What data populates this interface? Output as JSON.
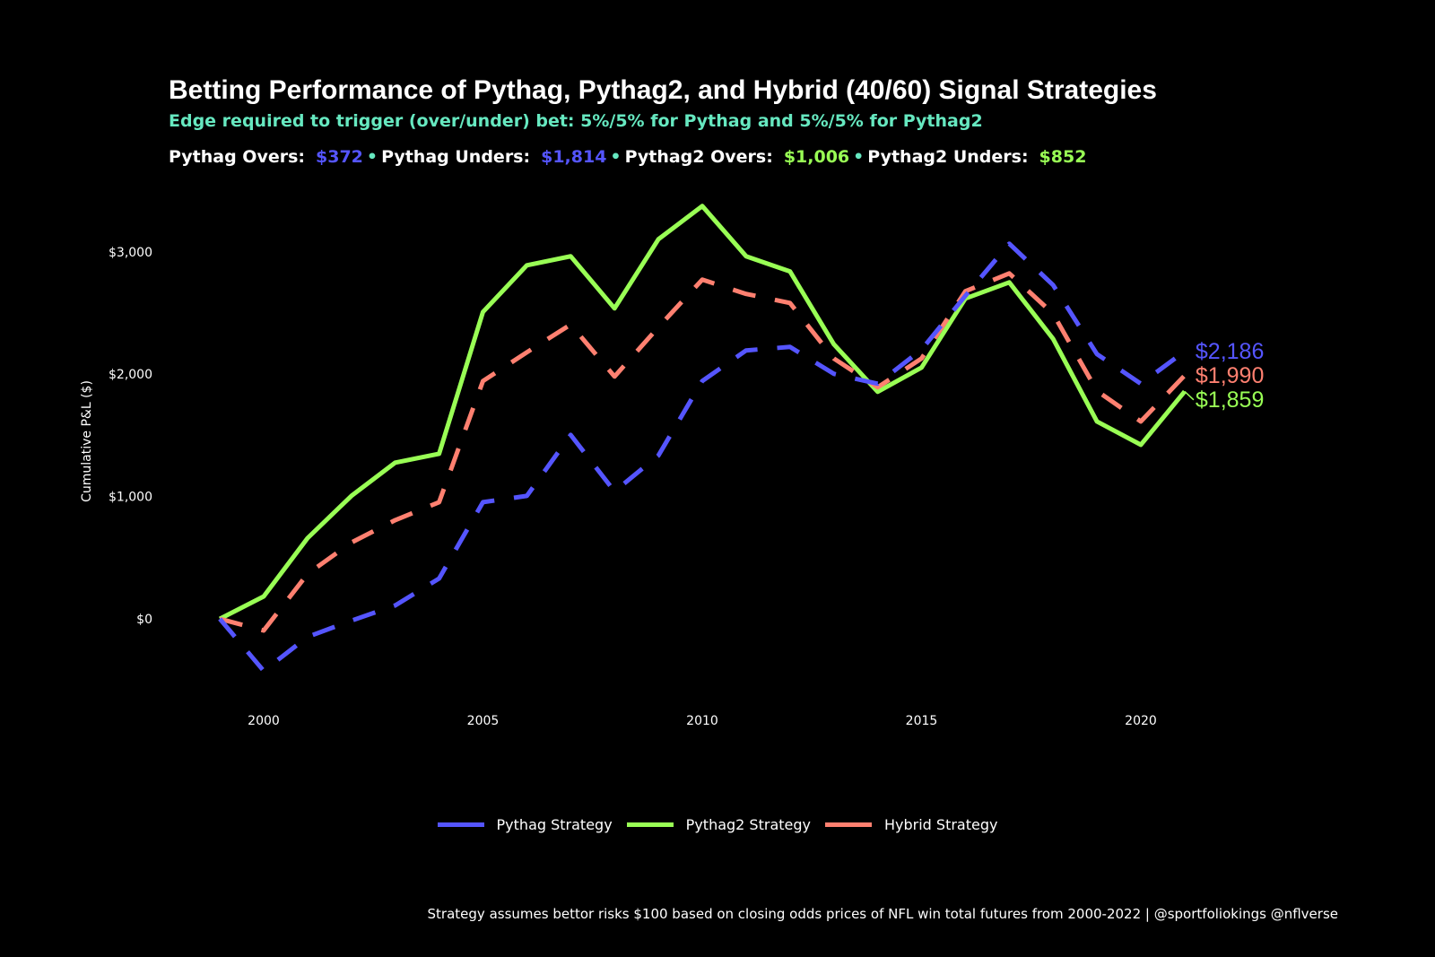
{
  "chart_data": {
    "type": "line",
    "title": "Betting Performance of Pythag, Pythag2, and Hybrid (40/60) Signal Strategies",
    "subtitle": "Edge required to trigger (over/under) bet: 5%/5% for Pythag and 5%/5% for Pythag2",
    "summary": [
      {
        "label": "Pythag Overs:",
        "value": "$372",
        "color": "#5555ff"
      },
      {
        "label": "Pythag Unders:",
        "value": "$1,814",
        "color": "#5555ff"
      },
      {
        "label": "Pythag2 Overs:",
        "value": "$1,006",
        "color": "#99ff55"
      },
      {
        "label": "Pythag2 Unders:",
        "value": "$852",
        "color": "#99ff55"
      }
    ],
    "separator": "•",
    "ylabel": "Cumulative P&L ($)",
    "xlabel": "",
    "xlim": [
      1998,
      2023
    ],
    "ylim": [
      -700,
      3450
    ],
    "x_ticks": [
      2000,
      2005,
      2010,
      2015,
      2020
    ],
    "x_tick_labels": [
      "2000",
      "2005",
      "2010",
      "2015",
      "2020"
    ],
    "y_ticks": [
      0,
      1000,
      2000,
      3000
    ],
    "y_tick_labels": [
      "$0",
      "$1,000",
      "$2,000",
      "$3,000"
    ],
    "grid": false,
    "legend_position": "bottom",
    "x": [
      1999,
      2000,
      2001,
      2002,
      2003,
      2004,
      2005,
      2006,
      2007,
      2008,
      2009,
      2010,
      2011,
      2012,
      2013,
      2014,
      2015,
      2016,
      2017,
      2018,
      2019,
      2020,
      2021
    ],
    "series": [
      {
        "name": "Pythag Strategy",
        "color": "#5555ff",
        "dash": "dashed",
        "end_label": "$2,186",
        "values": [
          0,
          -425,
          -147,
          -15,
          110,
          330,
          954,
          1005,
          1504,
          1042,
          1335,
          1944,
          2194,
          2223,
          2003,
          1922,
          2201,
          2641,
          3067,
          2729,
          2164,
          1922,
          2186
        ]
      },
      {
        "name": "Pythag2 Strategy",
        "color": "#99ff55",
        "dash": "solid",
        "end_label": "$1,859",
        "values": [
          0,
          183,
          660,
          1005,
          1277,
          1350,
          2509,
          2890,
          2964,
          2538,
          3103,
          3375,
          2964,
          2840,
          2245,
          1856,
          2054,
          2619,
          2751,
          2289,
          1614,
          1423,
          1859
        ]
      },
      {
        "name": "Hybrid Strategy",
        "color": "#ff8070",
        "dash": "dashed",
        "end_label": "$1,990",
        "values": [
          0,
          -95,
          367,
          624,
          807,
          954,
          1944,
          2179,
          2406,
          1981,
          2384,
          2773,
          2656,
          2582,
          2128,
          1893,
          2128,
          2678,
          2824,
          2494,
          1864,
          1614,
          1990
        ]
      }
    ],
    "caption": "Strategy assumes bettor risks $100 based on closing odds prices of NFL win total futures from 2000-2022 | @sportfoliokings @nflverse"
  },
  "colors": {
    "background": "#000000",
    "subtitle": "#66e8c0",
    "text": "#ffffff"
  }
}
